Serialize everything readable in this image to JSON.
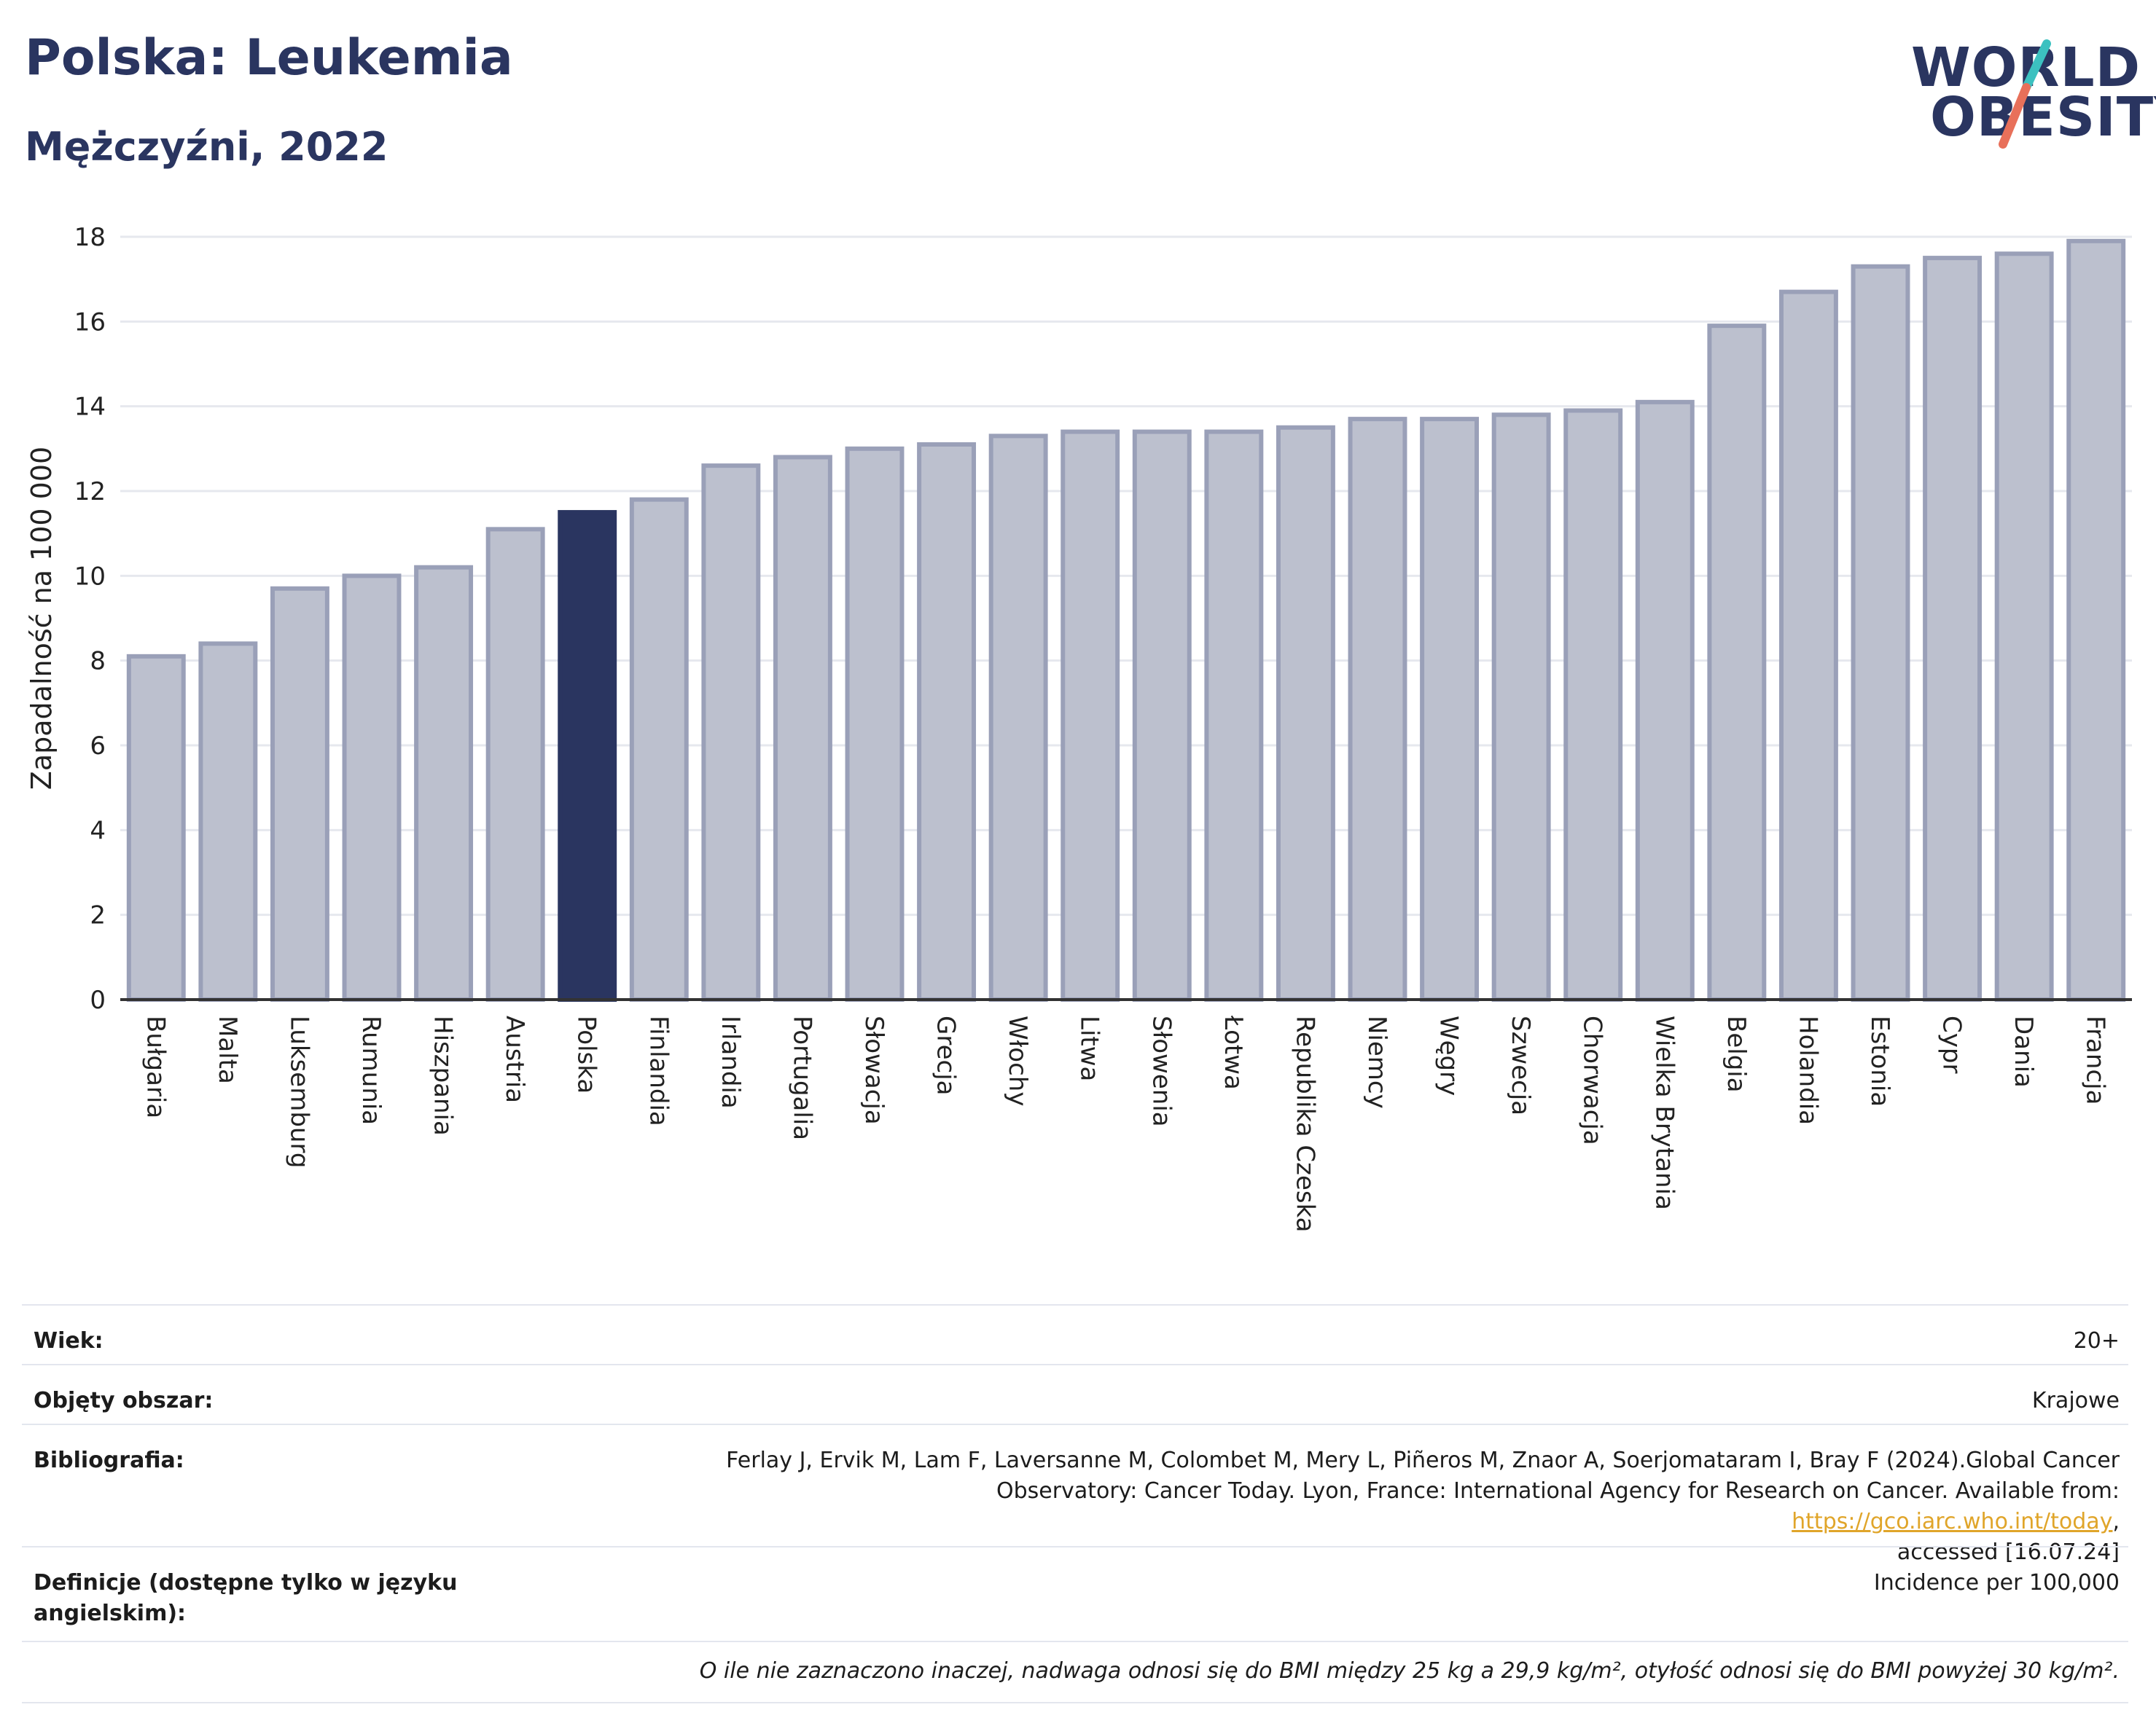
{
  "header": {
    "title": "Polska: Leukemia",
    "subtitle": "Mężczyźni, 2022"
  },
  "logo": {
    "line1": "WORLD",
    "line2": "OBESITY",
    "accent_colors": [
      "#3cc1c0",
      "#e8705a"
    ]
  },
  "colors": {
    "bar": "#bcc0ce",
    "bar_border": "#9aa0b8",
    "highlight": "#2a3560",
    "grid": "#e6e8ee",
    "axis": "#333333"
  },
  "chart_data": {
    "type": "bar",
    "title": "Polska: Leukemia",
    "subtitle": "Mężczyźni, 2022",
    "xlabel": "",
    "ylabel": "Zapadalność na 100 000",
    "ylim": [
      0,
      18
    ],
    "yticks": [
      0,
      2,
      4,
      6,
      8,
      10,
      12,
      14,
      16,
      18
    ],
    "highlight": "Polska",
    "grid": true,
    "categories": [
      "Bułgaria",
      "Malta",
      "Luksemburg",
      "Rumunia",
      "Hiszpania",
      "Austria",
      "Polska",
      "Finlandia",
      "Irlandia",
      "Portugalia",
      "Słowacja",
      "Grecja",
      "Włochy",
      "Litwa",
      "Słowenia",
      "Łotwa",
      "Republika Czeska",
      "Niemcy",
      "Węgry",
      "Szwecja",
      "Chorwacja",
      "Wielka Brytania",
      "Belgia",
      "Holandia",
      "Estonia",
      "Cypr",
      "Dania",
      "Francja"
    ],
    "values": [
      8.1,
      8.4,
      9.7,
      10.0,
      10.2,
      11.1,
      11.5,
      11.8,
      12.6,
      12.8,
      13.0,
      13.1,
      13.3,
      13.4,
      13.4,
      13.4,
      13.5,
      13.7,
      13.7,
      13.8,
      13.9,
      14.1,
      15.9,
      16.7,
      17.3,
      17.5,
      17.6,
      17.9
    ]
  },
  "meta": {
    "age_label": "Wiek:",
    "age_value": "20+",
    "area_label": "Objęty obszar:",
    "area_value": "Krajowe",
    "bib_label": "Bibliografia:",
    "bib_line1": "Ferlay J, Ervik M, Lam F, Laversanne M, Colombet M, Mery L, Piñeros M, Znaor A, Soerjomataram I, Bray F (2024).Global Cancer",
    "bib_line2_pre": "Observatory: Cancer Today. Lyon, France: International Agency for Research on Cancer. Available from: ",
    "bib_link": "https://gco.iarc.who.int/today",
    "bib_line2_post": ",",
    "bib_line3": "accessed [16.07.24]",
    "def_label": "Definicje (dostępne tylko w języku angielskim):",
    "def_value": "Incidence per 100,000",
    "footnote": "O ile nie zaznaczono inaczej, nadwaga odnosi się do BMI między 25 kg a 29,9 kg/m², otyłość odnosi się do BMI powyżej 30 kg/m²."
  }
}
